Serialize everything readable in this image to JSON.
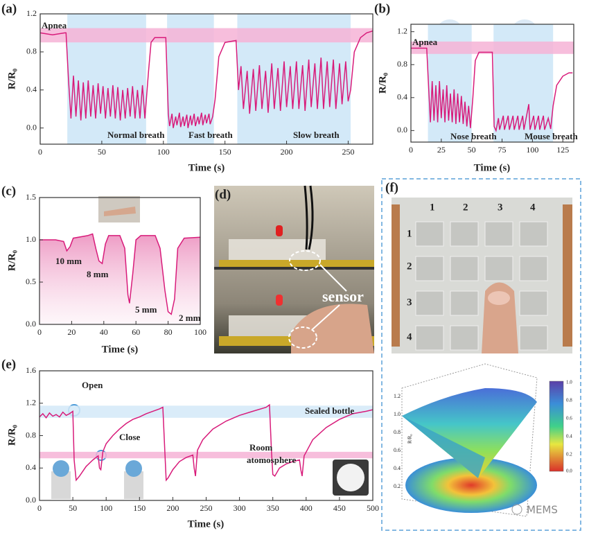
{
  "chart_data": [
    {
      "type": "line",
      "panel": "(a)",
      "x_label": "Time (s)",
      "y_label": "R/R₀",
      "color": "#d81b7a",
      "xlim": [
        0,
        270
      ],
      "ylim": [
        -0.17,
        1.2
      ],
      "xticks": [
        0,
        50,
        100,
        150,
        200,
        250
      ],
      "yticks": [
        {
          "value": 0,
          "label": "0.0"
        },
        0.4,
        0.8,
        1.2
      ],
      "x_bands": [
        [
          22,
          86
        ],
        [
          103,
          141
        ],
        [
          160,
          252
        ]
      ],
      "y_bands": [
        [
          0.9,
          1.05
        ]
      ],
      "x_band_color": "#d3e9f8",
      "y_band_color": "#f6b3d6",
      "annotations": [
        "Apnea",
        "Normal breath",
        "Fast breath",
        "Slow breath"
      ],
      "x": [
        0,
        10,
        20,
        21,
        23,
        25,
        27,
        29,
        31,
        33,
        35,
        37,
        39,
        41,
        43,
        45,
        47,
        49,
        51,
        53,
        55,
        57,
        59,
        61,
        63,
        65,
        67,
        69,
        71,
        73,
        75,
        77,
        79,
        81,
        83,
        85,
        88,
        90,
        93,
        102,
        104,
        105,
        107,
        108,
        110,
        111,
        113,
        114,
        116,
        117,
        119,
        120,
        122,
        123,
        125,
        126,
        128,
        129,
        131,
        132,
        134,
        135,
        137,
        138,
        140,
        142,
        145,
        150,
        159,
        161,
        163,
        165,
        168,
        170,
        173,
        175,
        178,
        180,
        183,
        185,
        188,
        190,
        193,
        195,
        198,
        200,
        203,
        205,
        208,
        210,
        213,
        215,
        218,
        220,
        223,
        225,
        228,
        230,
        233,
        235,
        238,
        240,
        243,
        245,
        248,
        250,
        252,
        255,
        260,
        265,
        270
      ],
      "values": [
        1.0,
        0.98,
        1.0,
        1.0,
        0.5,
        0.1,
        0.55,
        0.12,
        0.5,
        0.08,
        0.48,
        0.1,
        0.5,
        0.12,
        0.45,
        0.1,
        0.47,
        0.15,
        0.44,
        0.1,
        0.42,
        0.12,
        0.45,
        0.1,
        0.43,
        0.08,
        0.4,
        0.1,
        0.42,
        0.12,
        0.44,
        0.1,
        0.4,
        0.1,
        0.45,
        0.1,
        0.6,
        0.9,
        0.95,
        0.95,
        0.15,
        0.02,
        0.15,
        0.0,
        0.12,
        0.03,
        0.16,
        0.01,
        0.12,
        0.02,
        0.14,
        0.0,
        0.13,
        0.03,
        0.15,
        0.02,
        0.12,
        0.04,
        0.16,
        0.03,
        0.14,
        0.05,
        0.15,
        0.04,
        0.12,
        0.3,
        0.75,
        0.9,
        0.92,
        0.4,
        0.65,
        0.2,
        0.6,
        0.15,
        0.62,
        0.18,
        0.66,
        0.2,
        0.6,
        0.16,
        0.68,
        0.2,
        0.63,
        0.18,
        0.7,
        0.22,
        0.65,
        0.2,
        0.7,
        0.2,
        0.66,
        0.18,
        0.72,
        0.22,
        0.68,
        0.2,
        0.74,
        0.2,
        0.7,
        0.22,
        0.72,
        0.2,
        0.68,
        0.25,
        0.7,
        0.28,
        0.4,
        0.8,
        0.95,
        1.0,
        1.02
      ]
    },
    {
      "type": "line",
      "panel": "(b)",
      "x_label": "Time (s)",
      "y_label": "R/R₀",
      "color": "#d81b7a",
      "xlim": [
        0,
        134
      ],
      "ylim": [
        -0.14,
        1.29
      ],
      "xticks": [
        0,
        25,
        50,
        75,
        100,
        125
      ],
      "yticks": [
        {
          "value": 0,
          "label": "0.0"
        },
        0.4,
        0.8,
        1.2
      ],
      "x_bands": [
        [
          14,
          50
        ],
        [
          68,
          117
        ]
      ],
      "y_bands": [
        [
          0.93,
          1.08
        ]
      ],
      "x_band_color": "#d3e9f8",
      "y_band_color": "#f6b3d6",
      "annotations": [
        "Apnea",
        "Nose breath",
        "Mouse breath"
      ],
      "x": [
        0,
        8,
        12,
        13,
        14.5,
        16,
        17.5,
        19,
        20.5,
        22,
        23.5,
        25,
        26.5,
        28,
        29.5,
        31,
        32.5,
        34,
        35.5,
        37,
        38.5,
        40,
        41.5,
        43,
        44.5,
        46,
        47.5,
        49,
        51,
        53,
        56,
        67,
        68.5,
        70,
        72,
        73,
        76,
        77,
        80,
        81,
        84,
        85,
        88,
        89,
        92,
        93,
        97,
        98,
        101,
        102,
        105,
        106,
        109,
        110,
        113,
        115,
        117,
        120,
        125,
        130,
        133
      ],
      "values": [
        1.0,
        1.0,
        1.0,
        1.0,
        0.55,
        0.1,
        0.6,
        0.12,
        0.55,
        0.1,
        0.6,
        0.15,
        0.5,
        0.1,
        0.55,
        0.12,
        0.45,
        0.1,
        0.5,
        0.08,
        0.45,
        0.1,
        0.42,
        0.08,
        0.35,
        0.05,
        0.3,
        0.03,
        0.4,
        0.85,
        0.95,
        0.95,
        0.05,
        0.0,
        0.15,
        0.01,
        0.18,
        0.01,
        0.18,
        0.01,
        0.18,
        0.01,
        0.18,
        0.01,
        0.18,
        0.01,
        0.32,
        0.01,
        0.18,
        0.01,
        0.18,
        0.01,
        0.18,
        0.01,
        0.15,
        0.02,
        0.3,
        0.55,
        0.66,
        0.7,
        0.7
      ]
    },
    {
      "type": "area",
      "panel": "(c)",
      "x_label": "Time (s)",
      "y_label": "R/R₀",
      "color": "#d81b7a",
      "xlim": [
        0,
        100
      ],
      "ylim": [
        0,
        1.5
      ],
      "xticks": [
        0,
        20,
        40,
        60,
        80,
        100
      ],
      "yticks": [
        {
          "value": 0,
          "label": "0.0"
        },
        0.5,
        {
          "value": 1,
          "label": "1.0"
        },
        1.5
      ],
      "annotations": [
        "10 mm",
        "8 mm",
        "5 mm",
        "2 mm"
      ],
      "x": [
        0,
        10,
        15,
        17,
        19,
        21,
        30,
        33,
        35,
        37,
        39,
        41,
        43,
        50,
        53,
        55,
        56,
        58,
        60,
        63,
        72,
        75,
        78,
        80,
        82,
        84,
        86,
        90,
        100
      ],
      "values": [
        1.0,
        1.0,
        0.98,
        0.87,
        0.92,
        1.02,
        1.05,
        1.07,
        0.9,
        0.75,
        0.72,
        0.95,
        1.05,
        1.05,
        0.9,
        0.35,
        0.25,
        0.6,
        1.0,
        1.05,
        1.05,
        0.9,
        0.4,
        0.15,
        0.12,
        0.3,
        0.9,
        1.02,
        1.03
      ]
    },
    {
      "type": "line",
      "panel": "(e)",
      "x_label": "Time (s)",
      "y_label": "R/R₀",
      "color": "#d81b7a",
      "xlim": [
        0,
        500
      ],
      "ylim": [
        0,
        1.6
      ],
      "xticks": [
        0,
        50,
        100,
        150,
        200,
        250,
        300,
        350,
        400,
        450,
        500
      ],
      "yticks": [
        {
          "value": 0,
          "label": "0.0"
        },
        0.4,
        0.8,
        1.2,
        1.6
      ],
      "y_bands": [
        [
          1.02,
          1.17
        ],
        [
          0.52,
          0.6
        ]
      ],
      "y_band_colors": [
        "#d3e9f8",
        "#f6b3d6"
      ],
      "annotations": [
        "Open",
        "Close",
        "Sealed bottle",
        "Room",
        "atomosphere"
      ],
      "x": [
        0,
        5,
        10,
        15,
        20,
        25,
        30,
        35,
        40,
        45,
        50,
        52,
        55,
        60,
        70,
        80,
        88,
        90,
        92,
        95,
        100,
        110,
        120,
        130,
        140,
        150,
        160,
        170,
        180,
        185,
        188,
        190,
        193,
        200,
        210,
        220,
        230,
        232,
        234,
        237,
        245,
        260,
        280,
        300,
        320,
        340,
        345,
        348,
        350,
        353,
        360,
        370,
        380,
        390,
        392,
        394,
        397,
        410,
        430,
        450,
        470,
        490,
        500
      ],
      "values": [
        1.03,
        1.07,
        1.02,
        1.08,
        1.04,
        1.06,
        1.03,
        1.09,
        1.05,
        1.07,
        1.1,
        0.5,
        0.25,
        0.3,
        0.42,
        0.5,
        0.55,
        0.4,
        0.38,
        0.6,
        0.7,
        0.8,
        0.88,
        0.95,
        1.0,
        1.03,
        1.07,
        1.1,
        1.13,
        1.15,
        0.6,
        0.25,
        0.28,
        0.38,
        0.48,
        0.53,
        0.56,
        0.4,
        0.3,
        0.62,
        0.75,
        0.88,
        0.98,
        1.05,
        1.1,
        1.15,
        1.18,
        0.6,
        0.32,
        0.3,
        0.4,
        0.45,
        0.48,
        0.5,
        0.38,
        0.3,
        0.55,
        0.75,
        0.9,
        1.0,
        1.07,
        1.1,
        1.12
      ]
    }
  ],
  "photo_d": {
    "panel": "(d)",
    "annotation": "sensor"
  },
  "panel_f": {
    "panel": "(f)",
    "columns": [
      "1",
      "2",
      "3",
      "4"
    ],
    "rows": [
      "1",
      "2",
      "3",
      "4"
    ],
    "z_ticks": [
      "1.2",
      "1.0",
      "0.8",
      "0.6",
      "0.4",
      "0.2"
    ],
    "z_label": "R/R₀",
    "colorbar_ticks": [
      "1.0",
      "0.8",
      "0.6",
      "0.4",
      "0.2",
      "0.0"
    ]
  },
  "watermark": "MEMS"
}
